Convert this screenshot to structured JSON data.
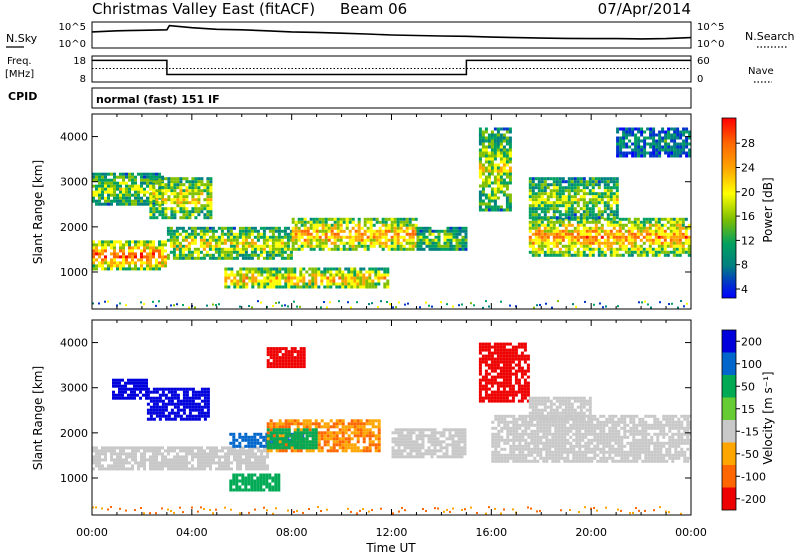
{
  "header": {
    "station": "Christmas Valley East (fitACF)",
    "beam": "Beam 06",
    "date": "07/Apr/2014"
  },
  "sky_panel": {
    "label": "N.Sky",
    "right_label": "N.Search",
    "left_ticks": [
      "10^5",
      "10^0"
    ],
    "right_ticks": [
      "10^5",
      "10^0"
    ]
  },
  "freq_panel": {
    "label_line1": "Freq.",
    "label_line2": "[MHz]",
    "right_label": "Nave",
    "left_ticks": [
      "18",
      "8"
    ],
    "right_ticks": [
      "60",
      "0"
    ]
  },
  "cpid": {
    "label": "CPID",
    "mode": "normal (fast) 151 IF"
  },
  "chart_data": [
    {
      "type": "line",
      "name": "sky-noise",
      "x_hours": [
        0,
        1,
        2,
        3,
        3.1,
        4,
        5,
        6,
        7,
        8,
        9,
        10,
        11,
        12,
        13,
        14,
        15,
        16,
        17,
        18,
        19,
        20,
        21,
        22,
        23,
        24
      ],
      "y_norm": [
        0.62,
        0.66,
        0.68,
        0.7,
        0.86,
        0.78,
        0.72,
        0.7,
        0.66,
        0.62,
        0.6,
        0.57,
        0.54,
        0.5,
        0.48,
        0.46,
        0.45,
        0.42,
        0.4,
        0.38,
        0.37,
        0.36,
        0.36,
        0.35,
        0.36,
        0.4
      ],
      "yscale": "log"
    },
    {
      "type": "line",
      "name": "transmit-frequency",
      "x_hours": [
        0,
        3,
        3,
        15,
        15,
        24
      ],
      "y": [
        16.3,
        16.3,
        10.9,
        10.9,
        16.3,
        16.3
      ],
      "ylim": [
        8,
        18
      ],
      "nave_level": 0.52
    },
    {
      "type": "heatmap",
      "name": "power",
      "xlabel": "",
      "ylabel": "Slant Range [km]",
      "x_range_hours": [
        0,
        24
      ],
      "ylim": [
        180,
        4500
      ],
      "y_ticks": [
        1000,
        2000,
        3000,
        4000
      ],
      "colorbar": {
        "label": "Power [dB]",
        "tick_labels": [
          "28",
          "24",
          "20",
          "16",
          "12",
          "8",
          "4"
        ],
        "colors": [
          "#ff0000",
          "#ff6600",
          "#ffa500",
          "#ffff00",
          "#80c000",
          "#00a060",
          "#008080",
          "#0033cc",
          "#0000ff"
        ]
      },
      "regions": [
        {
          "x": [
            0,
            3
          ],
          "y": [
            1100,
            1700
          ],
          "level": 0.88
        },
        {
          "x": [
            0,
            2.8
          ],
          "y": [
            2500,
            3200
          ],
          "level": 0.55
        },
        {
          "x": [
            2.3,
            4.8
          ],
          "y": [
            2200,
            3100
          ],
          "level": 0.65
        },
        {
          "x": [
            3,
            8
          ],
          "y": [
            1300,
            2000
          ],
          "level": 0.62
        },
        {
          "x": [
            5.3,
            11.8
          ],
          "y": [
            650,
            1100
          ],
          "level": 0.72
        },
        {
          "x": [
            8,
            13
          ],
          "y": [
            1500,
            2200
          ],
          "level": 0.78
        },
        {
          "x": [
            13,
            15
          ],
          "y": [
            1500,
            2000
          ],
          "level": 0.5
        },
        {
          "x": [
            15.5,
            16.8
          ],
          "y": [
            2400,
            4200
          ],
          "level": 0.6
        },
        {
          "x": [
            17.5,
            24
          ],
          "y": [
            1400,
            2200
          ],
          "level": 0.8
        },
        {
          "x": [
            17.5,
            21
          ],
          "y": [
            2200,
            3100
          ],
          "level": 0.55
        },
        {
          "x": [
            21,
            24
          ],
          "y": [
            3600,
            4200
          ],
          "level": 0.3
        }
      ]
    },
    {
      "type": "heatmap",
      "name": "velocity",
      "xlabel": "Time UT",
      "ylabel": "Slant Range [km]",
      "x_ticks": [
        "00:00",
        "04:00",
        "08:00",
        "12:00",
        "16:00",
        "20:00",
        "00:00"
      ],
      "x_range_hours": [
        0,
        24
      ],
      "ylim": [
        180,
        4500
      ],
      "y_ticks": [
        1000,
        2000,
        3000,
        4000
      ],
      "colorbar": {
        "label": "Velocity [m s⁻¹]",
        "tick_labels": [
          "200",
          "100",
          "50",
          "15",
          "-15",
          "-50",
          "-100",
          "-200"
        ],
        "colors": [
          "#0000dd",
          "#0066cc",
          "#00aa55",
          "#66cc33",
          "#c8c8c8",
          "#ffa500",
          "#ff6600",
          "#ee0000"
        ]
      },
      "regions": [
        {
          "x": [
            0,
            7
          ],
          "y": [
            1200,
            1700
          ],
          "v": 0
        },
        {
          "x": [
            0.8,
            2.2
          ],
          "y": [
            2800,
            3200
          ],
          "v": 200
        },
        {
          "x": [
            2.2,
            4.7
          ],
          "y": [
            2300,
            3000
          ],
          "v": 200
        },
        {
          "x": [
            5.5,
            8.5
          ],
          "y": [
            1700,
            2000
          ],
          "v": 100
        },
        {
          "x": [
            7,
            11.5
          ],
          "y": [
            1600,
            2300
          ],
          "v": -50
        },
        {
          "x": [
            7,
            9
          ],
          "y": [
            1700,
            2100
          ],
          "v": 50
        },
        {
          "x": [
            5.5,
            7.5
          ],
          "y": [
            750,
            1100
          ],
          "v": 50
        },
        {
          "x": [
            12,
            15
          ],
          "y": [
            1500,
            2100
          ],
          "v": 0
        },
        {
          "x": [
            7,
            8.5
          ],
          "y": [
            3500,
            3900
          ],
          "v": -200
        },
        {
          "x": [
            15.5,
            17.5
          ],
          "y": [
            2700,
            4000
          ],
          "v": -200
        },
        {
          "x": [
            16,
            24
          ],
          "y": [
            1400,
            2400
          ],
          "v": 0
        },
        {
          "x": [
            17.5,
            20
          ],
          "y": [
            2300,
            2800
          ],
          "v": 0
        }
      ]
    }
  ]
}
